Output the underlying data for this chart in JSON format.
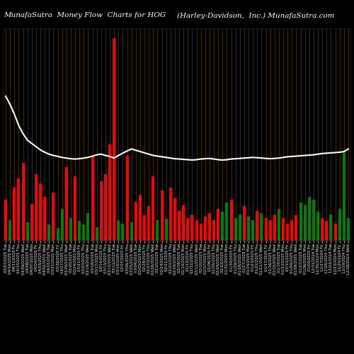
{
  "title_left": "MunafaSutra  Money Flow  Charts for HOG",
  "title_right": "(Harley-Davidson,  Inc.) MunafaSutra.com",
  "bg_color": "#000000",
  "grid_color": "#5a3a00",
  "bar_colors": [
    "red",
    "green",
    "red",
    "red",
    "red",
    "green",
    "red",
    "red",
    "red",
    "red",
    "green",
    "red",
    "green",
    "green",
    "red",
    "green",
    "red",
    "green",
    "green",
    "green",
    "red",
    "green",
    "red",
    "red",
    "red",
    "red",
    "green",
    "green",
    "red",
    "green",
    "red",
    "red",
    "red",
    "red",
    "red",
    "green",
    "red",
    "green",
    "red",
    "red",
    "red",
    "red",
    "red",
    "red",
    "red",
    "red",
    "red",
    "red",
    "red",
    "red",
    "green",
    "green",
    "red",
    "green",
    "green",
    "red",
    "green",
    "green",
    "red",
    "green",
    "red",
    "red",
    "red",
    "green",
    "red",
    "red",
    "red",
    "red",
    "green",
    "green",
    "green",
    "green",
    "green",
    "red",
    "red",
    "green",
    "red",
    "green",
    "green",
    "green"
  ],
  "bar_values": [
    180,
    90,
    230,
    270,
    340,
    80,
    160,
    290,
    250,
    190,
    70,
    210,
    55,
    140,
    320,
    100,
    280,
    85,
    70,
    120,
    370,
    60,
    260,
    290,
    420,
    880,
    90,
    75,
    370,
    80,
    170,
    200,
    110,
    150,
    280,
    90,
    220,
    95,
    230,
    185,
    130,
    155,
    100,
    115,
    90,
    75,
    105,
    120,
    90,
    140,
    125,
    165,
    180,
    100,
    115,
    150,
    105,
    90,
    130,
    120,
    100,
    90,
    115,
    140,
    100,
    75,
    90,
    110,
    165,
    155,
    190,
    180,
    125,
    100,
    85,
    115,
    75,
    140,
    390,
    100
  ],
  "line_values": [
    410,
    385,
    355,
    320,
    295,
    275,
    265,
    255,
    245,
    238,
    232,
    228,
    225,
    222,
    220,
    218,
    217,
    218,
    220,
    222,
    226,
    230,
    232,
    228,
    225,
    220,
    228,
    235,
    242,
    248,
    244,
    240,
    236,
    232,
    228,
    226,
    224,
    222,
    220,
    218,
    217,
    216,
    215,
    214,
    215,
    217,
    218,
    219,
    217,
    215,
    214,
    215,
    217,
    218,
    219,
    220,
    221,
    222,
    221,
    220,
    219,
    218,
    219,
    220,
    222,
    224,
    225,
    226,
    227,
    228,
    229,
    230,
    232,
    234,
    235,
    236,
    237,
    238,
    240,
    248
  ],
  "labels": [
    "05/07/2025 Tue",
    "04/14/2025 Mon",
    "04/11/2025 Fri",
    "04/10/2025 Thu",
    "04/09/2025 Wed",
    "04/08/2025 Tue",
    "04/07/2025 Mon",
    "04/04/2025 Fri",
    "04/03/2025 Thu",
    "04/02/2025 Wed",
    "04/01/2025 Tue",
    "03/31/2025 Mon",
    "03/28/2025 Fri",
    "03/27/2025 Thu",
    "03/26/2025 Wed",
    "03/25/2025 Tue",
    "03/24/2025 Mon",
    "03/21/2025 Fri",
    "03/20/2025 Thu",
    "03/19/2025 Wed",
    "03/18/2025 Tue",
    "03/17/2025 Mon",
    "03/14/2025 Fri",
    "03/13/2025 Thu",
    "03/12/2025 Wed",
    "03/11/2025 Tue",
    "03/10/2025 Mon",
    "03/07/2025 Fri",
    "03/06/2025 Thu",
    "03/05/2025 Wed",
    "03/04/2025 Tue",
    "03/03/2025 Mon",
    "02/28/2025 Fri",
    "02/27/2025 Thu",
    "02/26/2025 Wed",
    "02/25/2025 Tue",
    "02/24/2025 Mon",
    "02/21/2025 Fri",
    "02/20/2025 Thu",
    "02/19/2025 Wed",
    "02/18/2025 Tue",
    "02/14/2025 Mon",
    "02/13/2025 Fri",
    "02/12/2025 Thu",
    "02/11/2025 Wed",
    "02/10/2025 Tue",
    "02/07/2025 Mon",
    "02/06/2025 Fri",
    "02/05/2025 Thu",
    "02/04/2025 Wed",
    "02/03/2025 Tue",
    "01/31/2025 Mon",
    "01/30/2025 Fri",
    "01/29/2025 Thu",
    "01/28/2025 Wed",
    "01/27/2025 Tue",
    "01/24/2025 Mon",
    "01/23/2025 Fri",
    "01/22/2025 Thu",
    "01/21/2025 Wed",
    "01/17/2025 Fri",
    "01/16/2025 Thu",
    "01/15/2025 Wed",
    "01/14/2025 Tue",
    "01/13/2025 Mon",
    "01/10/2025 Fri",
    "01/09/2025 Thu",
    "01/08/2025 Wed",
    "01/07/2025 Tue",
    "01/06/2025 Mon",
    "01/03/2025 Fri",
    "12/31/2024 Tue",
    "12/30/2024 Mon",
    "12/27/2024 Fri",
    "12/26/2024 Thu",
    "12/24/2024 Tue",
    "12/23/2024 Mon",
    "12/20/2024 Fri",
    "12/19/2024 Thu",
    "12/18/2024 Wed"
  ],
  "line_color": "#ffffff",
  "line_width": 1.5,
  "title_fontsize": 7.5,
  "label_fontsize": 3.8,
  "figsize": [
    5.0,
    5.0
  ],
  "dpi": 100
}
